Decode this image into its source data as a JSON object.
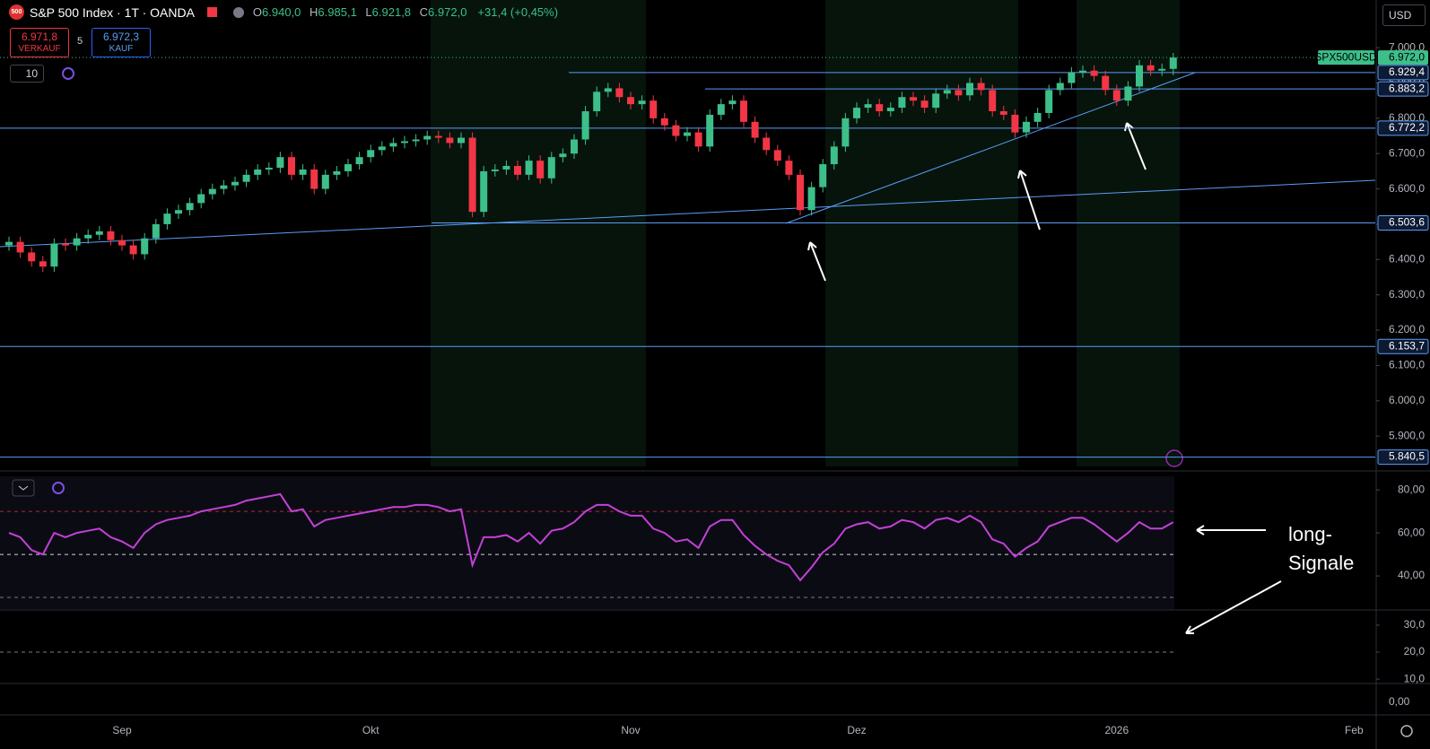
{
  "header": {
    "logo": "500",
    "symbol_title": "S&P 500 Index · 1T · OANDA",
    "ohlc": [
      {
        "label": "O",
        "value": "6.940,0"
      },
      {
        "label": "H",
        "value": "6.985,1"
      },
      {
        "label": "L",
        "value": "6.921,8"
      },
      {
        "label": "C",
        "value": "6.972,0"
      }
    ],
    "change": "+31,4 (+0,45%)",
    "sell": {
      "price": "6.971,8",
      "label": "VERKAUF"
    },
    "spread": "5",
    "buy": {
      "price": "6.972,3",
      "label": "KAUF"
    },
    "interval_count": "10",
    "currency": "USD",
    "histogram_tick": "0,00"
  },
  "annotation": {
    "lines": [
      "long-",
      "Signale"
    ]
  },
  "chart_data": [
    {
      "type": "candlestick",
      "categories": [
        null,
        null,
        null,
        null,
        null,
        null,
        null,
        null,
        null,
        null,
        "Sep",
        null,
        null,
        null,
        null,
        null,
        null,
        null,
        null,
        null,
        null,
        null,
        null,
        null,
        null,
        null,
        null,
        null,
        null,
        null,
        null,
        null,
        "Okt",
        null,
        null,
        null,
        null,
        null,
        null,
        null,
        null,
        null,
        null,
        null,
        null,
        null,
        null,
        null,
        null,
        null,
        null,
        null,
        null,
        null,
        null,
        "Nov",
        null,
        null,
        null,
        null,
        null,
        null,
        null,
        null,
        null,
        null,
        null,
        null,
        null,
        null,
        null,
        null,
        null,
        null,
        null,
        "Dez",
        null,
        null,
        null,
        null,
        null,
        null,
        null,
        null,
        null,
        null,
        null,
        null,
        null,
        null,
        null,
        null,
        null,
        null,
        null,
        null,
        null,
        null,
        "2026",
        null,
        null,
        null,
        null,
        null,
        null,
        null,
        null,
        null,
        null,
        null,
        null,
        null,
        null,
        null,
        null,
        null,
        null,
        null,
        null,
        "Feb"
      ],
      "open": [
        6440,
        6450,
        6420,
        6395,
        6380,
        6445,
        6440,
        6460,
        6470,
        6480,
        6455,
        6440,
        6415,
        6460,
        6500,
        6530,
        6540,
        6560,
        6585,
        6600,
        6610,
        6620,
        6640,
        6655,
        6660,
        6690,
        6640,
        6655,
        6600,
        6640,
        6650,
        6670,
        6690,
        6710,
        6720,
        6730,
        6735,
        6740,
        6750,
        6745,
        6730,
        6745,
        6535,
        6650,
        6655,
        6665,
        6640,
        6680,
        6630,
        6690,
        6700,
        6740,
        6820,
        6875,
        6885,
        6860,
        6840,
        6850,
        6800,
        6780,
        6750,
        6760,
        6720,
        6810,
        6840,
        6850,
        6790,
        6745,
        6710,
        6680,
        6640,
        6540,
        6605,
        6670,
        6720,
        6800,
        6830,
        6840,
        6820,
        6830,
        6860,
        6850,
        6830,
        6870,
        6880,
        6865,
        6900,
        6880,
        6820,
        6810,
        6760,
        6790,
        6815,
        6880,
        6900,
        6930,
        6935,
        6920,
        6880,
        6850,
        6890,
        6950,
        6935,
        6940,
        null,
        null,
        null,
        null,
        null,
        null,
        null,
        null,
        null,
        null,
        null,
        null,
        null,
        null,
        null,
        null
      ],
      "high": [
        6465,
        6465,
        6435,
        6410,
        6460,
        6460,
        6475,
        6485,
        6495,
        6495,
        6470,
        6455,
        6475,
        6515,
        6545,
        6555,
        6575,
        6600,
        6615,
        6625,
        6635,
        6655,
        6670,
        6675,
        6705,
        6705,
        6670,
        6670,
        6655,
        6665,
        6685,
        6705,
        6725,
        6735,
        6745,
        6750,
        6755,
        6765,
        6765,
        6760,
        6760,
        6760,
        6665,
        6670,
        6680,
        6680,
        6695,
        6695,
        6705,
        6715,
        6755,
        6835,
        6890,
        6900,
        6900,
        6875,
        6865,
        6865,
        6815,
        6795,
        6775,
        6775,
        6825,
        6855,
        6865,
        6865,
        6805,
        6760,
        6725,
        6695,
        6655,
        6620,
        6685,
        6735,
        6815,
        6845,
        6855,
        6855,
        6845,
        6875,
        6875,
        6865,
        6885,
        6895,
        6895,
        6915,
        6915,
        6895,
        6835,
        6825,
        6805,
        6830,
        6895,
        6915,
        6945,
        6950,
        6950,
        6935,
        6895,
        6905,
        6965,
        6965,
        6955,
        6985.1,
        null,
        null,
        null,
        null,
        null,
        null,
        null,
        null,
        null,
        null,
        null,
        null,
        null,
        null,
        null,
        null
      ],
      "low": [
        6425,
        6405,
        6380,
        6365,
        6365,
        6425,
        6425,
        6445,
        6455,
        6440,
        6425,
        6400,
        6400,
        6445,
        6485,
        6515,
        6525,
        6545,
        6570,
        6585,
        6595,
        6605,
        6625,
        6640,
        6645,
        6625,
        6625,
        6585,
        6585,
        6625,
        6635,
        6655,
        6675,
        6695,
        6705,
        6715,
        6720,
        6725,
        6730,
        6715,
        6715,
        6520,
        6520,
        6635,
        6640,
        6625,
        6625,
        6615,
        6615,
        6675,
        6685,
        6725,
        6805,
        6860,
        6845,
        6825,
        6825,
        6785,
        6765,
        6735,
        6735,
        6705,
        6705,
        6795,
        6825,
        6775,
        6730,
        6695,
        6665,
        6625,
        6525,
        6525,
        6590,
        6655,
        6705,
        6785,
        6815,
        6805,
        6805,
        6815,
        6835,
        6815,
        6815,
        6855,
        6850,
        6850,
        6865,
        6805,
        6795,
        6745,
        6745,
        6775,
        6800,
        6865,
        6885,
        6915,
        6905,
        6865,
        6835,
        6835,
        6875,
        6920,
        6920,
        6921.8,
        null,
        null,
        null,
        null,
        null,
        null,
        null,
        null,
        null,
        null,
        null,
        null,
        null,
        null,
        null,
        null
      ],
      "close": [
        6450,
        6420,
        6395,
        6380,
        6445,
        6440,
        6460,
        6470,
        6480,
        6455,
        6440,
        6415,
        6460,
        6500,
        6530,
        6540,
        6560,
        6585,
        6600,
        6610,
        6620,
        6640,
        6655,
        6660,
        6690,
        6640,
        6655,
        6600,
        6640,
        6650,
        6670,
        6690,
        6710,
        6720,
        6730,
        6735,
        6740,
        6750,
        6745,
        6730,
        6745,
        6535,
        6650,
        6655,
        6665,
        6640,
        6680,
        6630,
        6690,
        6700,
        6740,
        6820,
        6875,
        6885,
        6860,
        6840,
        6850,
        6800,
        6780,
        6750,
        6760,
        6720,
        6810,
        6840,
        6850,
        6790,
        6745,
        6710,
        6680,
        6640,
        6540,
        6605,
        6670,
        6720,
        6800,
        6830,
        6840,
        6820,
        6830,
        6860,
        6850,
        6830,
        6870,
        6880,
        6865,
        6900,
        6880,
        6820,
        6810,
        6760,
        6790,
        6815,
        6880,
        6900,
        6930,
        6935,
        6920,
        6880,
        6850,
        6890,
        6950,
        6935,
        6940,
        6972,
        null,
        null,
        null,
        null,
        null,
        null,
        null,
        null,
        null,
        null,
        null,
        null,
        null,
        null,
        null,
        null
      ],
      "up_color": "#3dbf8a",
      "down_color": "#f23645",
      "ylim": [
        5814,
        7135
      ],
      "yticks": [
        {
          "value": 5900,
          "label": "5.900,0"
        },
        {
          "value": 6000,
          "label": "6.000,0"
        },
        {
          "value": 6100,
          "label": "6.100,0"
        },
        {
          "value": 6200,
          "label": "6.200,0"
        },
        {
          "value": 6300,
          "label": "6.300,0"
        },
        {
          "value": 6400,
          "label": "6.400,0"
        },
        {
          "value": 6500,
          "label": "6.500,0"
        },
        {
          "value": 6600,
          "label": "6.600,0"
        },
        {
          "value": 6700,
          "label": "6.700,0"
        },
        {
          "value": 6800,
          "label": "6.800,0"
        },
        {
          "value": 6900,
          "label": "6.900,0"
        },
        {
          "value": 7000,
          "label": "7.000,0"
        }
      ],
      "levels": [
        {
          "value": 6929.4,
          "label": "6.929,4"
        },
        {
          "value": 6883.2,
          "label": "6.883,2"
        },
        {
          "value": 6772.2,
          "label": "6.772,2"
        },
        {
          "value": 6503.6,
          "label": "6.503,6"
        },
        {
          "value": 6153.7,
          "label": "6.153,7"
        },
        {
          "value": 5840.5,
          "label": "5.840,5"
        }
      ],
      "level_color": "#5b9cf6",
      "last": {
        "value": 6972,
        "label": "6.972,0"
      },
      "symbol": "SPX500USD"
    },
    {
      "type": "line",
      "values": [
        60,
        58,
        52,
        50,
        60,
        58,
        60,
        61,
        62,
        58,
        56,
        53,
        60,
        64,
        66,
        67,
        68,
        70,
        71,
        72,
        73,
        75,
        76,
        77,
        78,
        70,
        71,
        63,
        66,
        67,
        68,
        69,
        70,
        71,
        72,
        72,
        73,
        73,
        72,
        70,
        71,
        45,
        58,
        58,
        59,
        56,
        60,
        55,
        61,
        62,
        65,
        70,
        73,
        73,
        70,
        68,
        68,
        62,
        60,
        56,
        57,
        53,
        63,
        66,
        66,
        59,
        54,
        50,
        47,
        45,
        38,
        44,
        51,
        55,
        62,
        64,
        65,
        62,
        63,
        66,
        65,
        62,
        66,
        67,
        65,
        68,
        65,
        57,
        55,
        49,
        53,
        56,
        63,
        65,
        67,
        67,
        64,
        60,
        56,
        60,
        65,
        62,
        62,
        65
      ],
      "color": "#c341d6",
      "ylim": [
        24.6,
        86.3
      ],
      "yticks": [
        {
          "value": 40,
          "label": "40,00"
        },
        {
          "value": 60,
          "label": "60,00"
        },
        {
          "value": 80,
          "label": "80,00"
        }
      ],
      "reference_lines": [
        70,
        50,
        30
      ],
      "reference_colors": [
        "#b22833",
        "#d1d4dc",
        "#787b86"
      ]
    },
    {
      "type": "line",
      "ylim": [
        8.7,
        35.3
      ],
      "yticks": [
        {
          "value": 10,
          "label": "10,0"
        },
        {
          "value": 20,
          "label": "20,0"
        },
        {
          "value": 30,
          "label": "30,0"
        }
      ],
      "reference_lines": [
        20
      ],
      "reference_colors": [
        "#787b86"
      ]
    }
  ]
}
